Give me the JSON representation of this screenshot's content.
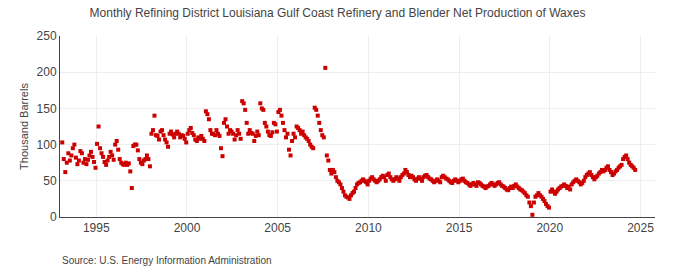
{
  "chart_data": {
    "type": "scatter",
    "title": "Monthly Refining District Louisiana Gulf Coast Refinery and Blender Net Production of Waxes",
    "ylabel": "Thousand Barrels",
    "annotations": [
      "Source: U.S. Energy Information Administration"
    ],
    "color": "#cc0000",
    "marker": "square",
    "grid": true,
    "xlim": [
      1993.0,
      2025.8
    ],
    "xticks": [
      1995,
      2000,
      2005,
      2010,
      2015,
      2020,
      2025
    ],
    "ylim": [
      0,
      250
    ],
    "yticks": [
      0,
      50,
      100,
      150,
      200,
      250
    ],
    "x": [
      1993.125,
      1993.208333,
      1993.291667,
      1993.375,
      1993.458333,
      1993.541667,
      1993.625,
      1993.708333,
      1993.791667,
      1993.875,
      1993.958333,
      1994.041667,
      1994.125,
      1994.208333,
      1994.291667,
      1994.375,
      1994.458333,
      1994.541667,
      1994.625,
      1994.708333,
      1994.791667,
      1994.875,
      1994.958333,
      1995.041667,
      1995.125,
      1995.208333,
      1995.291667,
      1995.375,
      1995.458333,
      1995.541667,
      1995.625,
      1995.708333,
      1995.791667,
      1995.875,
      1995.958333,
      1996.041667,
      1996.125,
      1996.208333,
      1996.291667,
      1996.375,
      1996.458333,
      1996.541667,
      1996.625,
      1996.708333,
      1996.791667,
      1996.875,
      1996.958333,
      1997.041667,
      1997.125,
      1997.208333,
      1997.291667,
      1997.375,
      1997.458333,
      1997.541667,
      1997.625,
      1997.708333,
      1997.791667,
      1997.875,
      1997.958333,
      1998.041667,
      1998.125,
      1998.208333,
      1998.291667,
      1998.375,
      1998.458333,
      1998.541667,
      1998.625,
      1998.708333,
      1998.791667,
      1998.875,
      1998.958333,
      1999.041667,
      1999.125,
      1999.208333,
      1999.291667,
      1999.375,
      1999.458333,
      1999.541667,
      1999.625,
      1999.708333,
      1999.791667,
      1999.875,
      1999.958333,
      2000.041667,
      2000.125,
      2000.208333,
      2000.291667,
      2000.375,
      2000.458333,
      2000.541667,
      2000.625,
      2000.708333,
      2000.791667,
      2000.875,
      2000.958333,
      2001.041667,
      2001.125,
      2001.208333,
      2001.291667,
      2001.375,
      2001.458333,
      2001.541667,
      2001.625,
      2001.708333,
      2001.791667,
      2001.875,
      2001.958333,
      2002.041667,
      2002.125,
      2002.208333,
      2002.291667,
      2002.375,
      2002.458333,
      2002.541667,
      2002.625,
      2002.708333,
      2002.791667,
      2002.875,
      2002.958333,
      2003.041667,
      2003.125,
      2003.208333,
      2003.291667,
      2003.375,
      2003.458333,
      2003.541667,
      2003.625,
      2003.708333,
      2003.791667,
      2003.875,
      2003.958333,
      2004.041667,
      2004.125,
      2004.208333,
      2004.291667,
      2004.375,
      2004.458333,
      2004.541667,
      2004.625,
      2004.708333,
      2004.791667,
      2004.875,
      2004.958333,
      2005.041667,
      2005.125,
      2005.208333,
      2005.291667,
      2005.375,
      2005.458333,
      2005.541667,
      2005.625,
      2005.708333,
      2005.791667,
      2005.875,
      2005.958333,
      2006.041667,
      2006.125,
      2006.208333,
      2006.291667,
      2006.375,
      2006.458333,
      2006.541667,
      2006.625,
      2006.708333,
      2006.791667,
      2006.875,
      2006.958333,
      2007.041667,
      2007.125,
      2007.208333,
      2007.291667,
      2007.375,
      2007.458333,
      2007.541667,
      2007.625,
      2007.708333,
      2007.791667,
      2007.875,
      2007.958333,
      2008.041667,
      2008.125,
      2008.208333,
      2008.291667,
      2008.375,
      2008.458333,
      2008.541667,
      2008.625,
      2008.708333,
      2008.791667,
      2008.875,
      2008.958333,
      2009.041667,
      2009.125,
      2009.208333,
      2009.291667,
      2009.375,
      2009.458333,
      2009.541667,
      2009.625,
      2009.708333,
      2009.791667,
      2009.875,
      2009.958333,
      2010.041667,
      2010.125,
      2010.208333,
      2010.291667,
      2010.375,
      2010.458333,
      2010.541667,
      2010.625,
      2010.708333,
      2010.791667,
      2010.875,
      2010.958333,
      2011.041667,
      2011.125,
      2011.208333,
      2011.291667,
      2011.375,
      2011.458333,
      2011.541667,
      2011.625,
      2011.708333,
      2011.791667,
      2011.875,
      2011.958333,
      2012.041667,
      2012.125,
      2012.208333,
      2012.291667,
      2012.375,
      2012.458333,
      2012.541667,
      2012.625,
      2012.708333,
      2012.791667,
      2012.875,
      2012.958333,
      2013.041667,
      2013.125,
      2013.208333,
      2013.291667,
      2013.375,
      2013.458333,
      2013.541667,
      2013.625,
      2013.708333,
      2013.791667,
      2013.875,
      2013.958333,
      2014.041667,
      2014.125,
      2014.208333,
      2014.291667,
      2014.375,
      2014.458333,
      2014.541667,
      2014.625,
      2014.708333,
      2014.791667,
      2014.875,
      2014.958333,
      2015.041667,
      2015.125,
      2015.208333,
      2015.291667,
      2015.375,
      2015.458333,
      2015.541667,
      2015.625,
      2015.708333,
      2015.791667,
      2015.875,
      2015.958333,
      2016.041667,
      2016.125,
      2016.208333,
      2016.291667,
      2016.375,
      2016.458333,
      2016.541667,
      2016.625,
      2016.708333,
      2016.791667,
      2016.875,
      2016.958333,
      2017.041667,
      2017.125,
      2017.208333,
      2017.291667,
      2017.375,
      2017.458333,
      2017.541667,
      2017.625,
      2017.708333,
      2017.791667,
      2017.875,
      2017.958333,
      2018.041667,
      2018.125,
      2018.208333,
      2018.291667,
      2018.375,
      2018.458333,
      2018.541667,
      2018.625,
      2018.708333,
      2018.791667,
      2018.875,
      2018.958333,
      2019.041667,
      2019.125,
      2019.208333,
      2019.291667,
      2019.375,
      2019.458333,
      2019.541667,
      2019.625,
      2019.708333,
      2019.791667,
      2019.875,
      2019.958333,
      2020.041667,
      2020.125,
      2020.208333,
      2020.291667,
      2020.375,
      2020.458333,
      2020.541667,
      2020.625,
      2020.708333,
      2020.791667,
      2020.875,
      2020.958333,
      2021.041667,
      2021.125,
      2021.208333,
      2021.291667,
      2021.375,
      2021.458333,
      2021.541667,
      2021.625,
      2021.708333,
      2021.791667,
      2021.875,
      2021.958333,
      2022.041667,
      2022.125,
      2022.208333,
      2022.291667,
      2022.375,
      2022.458333,
      2022.541667,
      2022.625,
      2022.708333,
      2022.791667,
      2022.875,
      2022.958333,
      2023.041667,
      2023.125,
      2023.208333,
      2023.291667,
      2023.375,
      2023.458333,
      2023.541667,
      2023.625,
      2023.708333,
      2023.791667,
      2023.875,
      2023.958333,
      2024.041667,
      2024.125,
      2024.208333,
      2024.291667,
      2024.375,
      2024.458333,
      2024.541667,
      2024.625,
      2024.708333
    ],
    "values": [
      103,
      80,
      62,
      75,
      88,
      78,
      85,
      95,
      100,
      82,
      73,
      78,
      91,
      88,
      75,
      80,
      73,
      79,
      85,
      90,
      83,
      76,
      68,
      101,
      125,
      95,
      88,
      83,
      76,
      72,
      78,
      83,
      90,
      85,
      79,
      100,
      105,
      93,
      80,
      75,
      73,
      72,
      75,
      72,
      74,
      63,
      40,
      98,
      100,
      100,
      92,
      80,
      75,
      73,
      78,
      80,
      85,
      80,
      70,
      115,
      120,
      140,
      113,
      112,
      107,
      118,
      120,
      113,
      107,
      103,
      97,
      115,
      118,
      114,
      110,
      115,
      118,
      115,
      110,
      113,
      112,
      108,
      103,
      115,
      120,
      123,
      116,
      113,
      107,
      105,
      110,
      108,
      112,
      108,
      105,
      146,
      142,
      135,
      120,
      115,
      115,
      113,
      120,
      115,
      112,
      95,
      84,
      130,
      135,
      125,
      115,
      120,
      118,
      115,
      107,
      113,
      120,
      115,
      108,
      160,
      157,
      148,
      130,
      115,
      120,
      116,
      115,
      105,
      112,
      118,
      113,
      157,
      150,
      148,
      130,
      125,
      118,
      113,
      112,
      117,
      130,
      128,
      118,
      145,
      148,
      140,
      130,
      120,
      110,
      115,
      93,
      85,
      105,
      115,
      110,
      125,
      123,
      120,
      115,
      118,
      113,
      110,
      108,
      105,
      100,
      97,
      95,
      151,
      148,
      140,
      130,
      120,
      113,
      110,
      206,
      85,
      78,
      65,
      60,
      65,
      62,
      55,
      50,
      48,
      45,
      40,
      35,
      30,
      28,
      27,
      25,
      30,
      33,
      35,
      40,
      45,
      47,
      48,
      50,
      52,
      50,
      48,
      45,
      50,
      53,
      55,
      52,
      50,
      48,
      50,
      52,
      55,
      57,
      55,
      50,
      58,
      60,
      55,
      52,
      50,
      52,
      55,
      53,
      50,
      55,
      58,
      60,
      65,
      62,
      58,
      55,
      57,
      55,
      52,
      50,
      53,
      55,
      53,
      50,
      55,
      57,
      58,
      55,
      53,
      52,
      50,
      48,
      50,
      52,
      50,
      48,
      55,
      57,
      55,
      53,
      52,
      50,
      48,
      47,
      50,
      52,
      50,
      48,
      50,
      52,
      53,
      50,
      48,
      47,
      45,
      43,
      45,
      47,
      45,
      43,
      48,
      47,
      45,
      43,
      42,
      40,
      42,
      43,
      45,
      47,
      45,
      43,
      45,
      47,
      48,
      45,
      43,
      42,
      40,
      38,
      37,
      40,
      42,
      40,
      43,
      45,
      42,
      40,
      38,
      37,
      35,
      33,
      30,
      28,
      20,
      15,
      3,
      20,
      28,
      30,
      33,
      30,
      28,
      25,
      22,
      18,
      15,
      13,
      35,
      38,
      35,
      32,
      35,
      38,
      40,
      42,
      43,
      45,
      43,
      40,
      42,
      38,
      45,
      48,
      50,
      52,
      50,
      48,
      45,
      47,
      50,
      55,
      58,
      60,
      62,
      58,
      55,
      52,
      55,
      57,
      60,
      62,
      65,
      63,
      65,
      68,
      70,
      65,
      62,
      58,
      60,
      63,
      65,
      68,
      70,
      72,
      80,
      83,
      85,
      80,
      75,
      72,
      70,
      68,
      65
    ]
  }
}
